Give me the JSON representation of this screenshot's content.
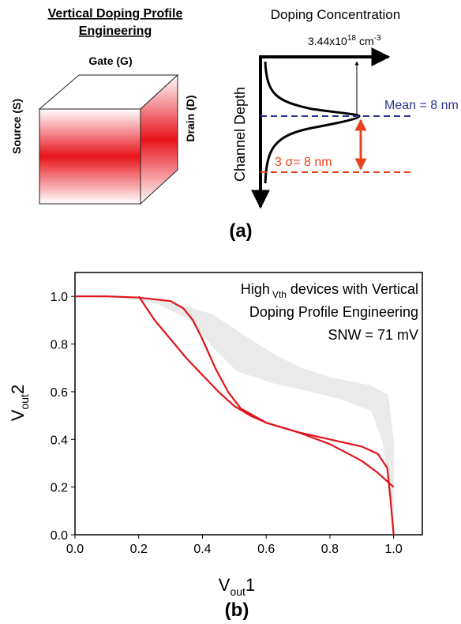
{
  "diagram": {
    "title_lines": [
      "Vertical Doping Profile",
      "Engineering"
    ],
    "gate": "Gate (G)",
    "source": "Source (S)",
    "drain": "Drain (D)",
    "profile_title": "Doping Concentration",
    "peak": [
      "3.44x10",
      "18",
      "cm",
      "-3"
    ],
    "depth_label": "Channel Depth",
    "mean_label": "Mean = 8 nm",
    "sigma_label": "3 σ= 8 nm",
    "panel": "(a)"
  },
  "chart_data": {
    "type": "line",
    "annotation": [
      "High",
      "Vth",
      "devices with Vertical",
      "Doping Profile Engineering",
      "SNW = 71 mV"
    ],
    "xlabel": [
      "V",
      "out",
      "1"
    ],
    "ylabel": [
      "V",
      "out",
      "2"
    ],
    "panel": "(b)",
    "xlim": [
      0,
      1.09
    ],
    "ylim": [
      0,
      1.1
    ],
    "xticks": [
      {
        "value": 0,
        "label": "0.0"
      },
      {
        "value": 0.2,
        "label": "0.2"
      },
      {
        "value": 0.4,
        "label": "0.4"
      },
      {
        "value": 0.6,
        "label": "0.6"
      },
      {
        "value": 0.8,
        "label": "0.8"
      },
      {
        "value": 1,
        "label": "1.0"
      }
    ],
    "yticks": [
      {
        "value": 0,
        "label": "0.0"
      },
      {
        "value": 0.2,
        "label": "0.2"
      },
      {
        "value": 0.4,
        "label": "0.4"
      },
      {
        "value": 0.6,
        "label": "0.6"
      },
      {
        "value": 0.8,
        "label": "0.8"
      },
      {
        "value": 1,
        "label": "1.0"
      }
    ],
    "series": [
      {
        "color": "#e0141b",
        "x": [
          0,
          0.1,
          0.2,
          0.3,
          0.34,
          0.37,
          0.4,
          0.44,
          0.48,
          0.52,
          0.56,
          0.6,
          0.7,
          0.8,
          0.9,
          0.95,
          0.98,
          0.99,
          1.0
        ],
        "values": [
          1.0,
          1.0,
          0.995,
          0.98,
          0.95,
          0.9,
          0.82,
          0.7,
          0.6,
          0.53,
          0.5,
          0.47,
          0.43,
          0.4,
          0.37,
          0.34,
          0.28,
          0.15,
          0
        ]
      },
      {
        "color": "#e0141b",
        "x": [
          0.2,
          0.25,
          0.3,
          0.35,
          0.4,
          0.45,
          0.5,
          0.55,
          0.6,
          0.7,
          0.8,
          0.9,
          0.95,
          1.0
        ],
        "values": [
          1.0,
          0.9,
          0.82,
          0.74,
          0.67,
          0.6,
          0.54,
          0.5,
          0.47,
          0.43,
          0.38,
          0.31,
          0.26,
          0.2
        ]
      }
    ]
  }
}
